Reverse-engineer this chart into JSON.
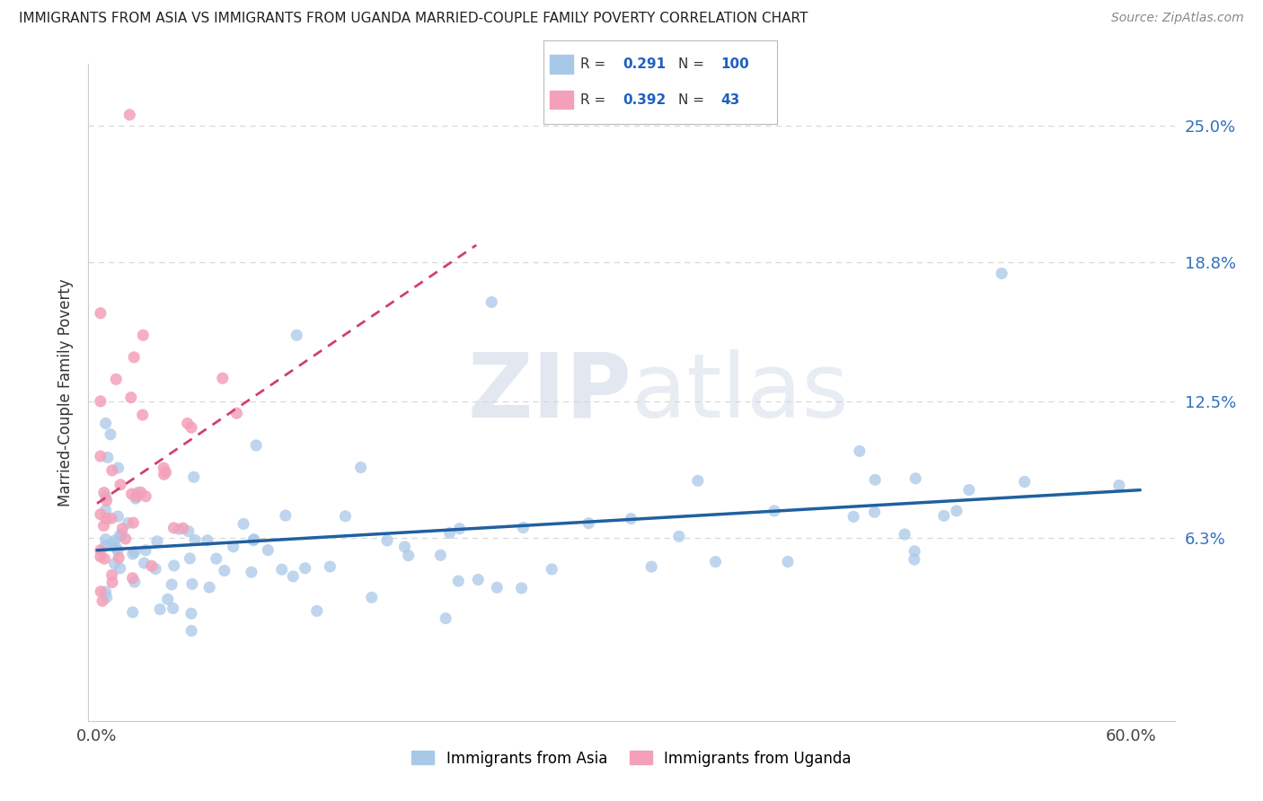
{
  "title": "IMMIGRANTS FROM ASIA VS IMMIGRANTS FROM UGANDA MARRIED-COUPLE FAMILY POVERTY CORRELATION CHART",
  "source": "Source: ZipAtlas.com",
  "ylabel": "Married-Couple Family Poverty",
  "ytick_values": [
    0.063,
    0.125,
    0.188,
    0.25
  ],
  "ytick_labels": [
    "6.3%",
    "12.5%",
    "18.8%",
    "25.0%"
  ],
  "xtick_values": [
    0.0,
    0.1,
    0.2,
    0.3,
    0.4,
    0.5,
    0.6
  ],
  "xtick_labels": [
    "0.0%",
    "",
    "",
    "",
    "",
    "",
    "60.0%"
  ],
  "xlim": [
    -0.005,
    0.625
  ],
  "ylim": [
    -0.02,
    0.278
  ],
  "blue_color": "#a8c8e8",
  "pink_color": "#f4a0b8",
  "blue_line_color": "#2060a0",
  "pink_line_color": "#d04070",
  "legend_r_blue": "0.291",
  "legend_n_blue": "100",
  "legend_r_pink": "0.392",
  "legend_n_pink": "43",
  "legend_r_color": "#2060c0",
  "legend_n_color": "#2060c0",
  "legend_label_blue": "Immigrants from Asia",
  "legend_label_pink": "Immigrants from Uganda",
  "watermark_zip": "ZIP",
  "watermark_atlas": "atlas",
  "watermark_color": "#d0d8e8",
  "background_color": "#ffffff",
  "grid_color": "#d8d8d8",
  "spine_color": "#cccccc"
}
